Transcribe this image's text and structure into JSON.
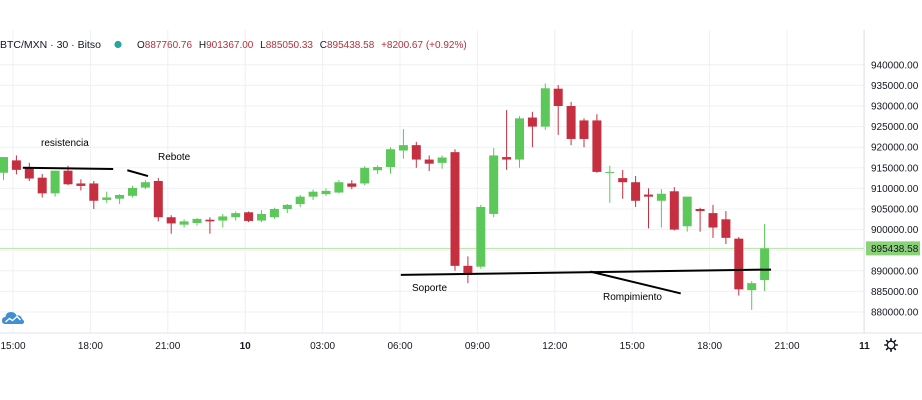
{
  "colors": {
    "up": "#5cc85a",
    "down": "#c52f3f",
    "grid": "#eef0f4",
    "price_tag": "#8bd17a",
    "current_line": "#b6e3a6",
    "annotation": "#000000",
    "background": "#ffffff"
  },
  "header": {
    "symbol": "BTC/MXN · 30 · Bitso",
    "status_dot_color": "#26a69a",
    "o_label": "O",
    "o_value": "887760.76",
    "h_label": "H",
    "h_value": "901367.00",
    "l_label": "L",
    "l_value": "885050.33",
    "c_label": "C",
    "c_value": "895438.58",
    "change": "+8200.67 (+0.92%)"
  },
  "price_tag": "895438.58",
  "logo_icon": "tradingview-cloud-icon",
  "settings_icon": "gear-icon",
  "chart_data": {
    "type": "candlestick",
    "title": "BTC/MXN · 30 · Bitso",
    "y_ticks": [
      880000,
      885000,
      890000,
      895000,
      900000,
      905000,
      910000,
      915000,
      920000,
      925000,
      930000,
      935000,
      940000
    ],
    "y_tick_labels": [
      "880000.00",
      "885000.00",
      "890000.00",
      "895000.00",
      "900000.00",
      "905000.00",
      "910000.00",
      "915000.00",
      "920000.00",
      "925000.00",
      "930000.00",
      "935000.00",
      "940000.00"
    ],
    "ylim": [
      877000,
      943000
    ],
    "x_ticks": [
      0,
      6,
      12,
      18,
      24,
      30,
      36,
      42,
      48,
      54,
      60,
      66,
      72
    ],
    "x_tick_labels": [
      "15:00",
      "18:00",
      "21:00",
      "10",
      "03:00",
      "06:00",
      "09:00",
      "12:00",
      "15:00",
      "18:00",
      "21:00",
      "11",
      ""
    ],
    "current_price": 895438.58,
    "candles": [
      {
        "o": 913800,
        "h": 917600,
        "l": 912000,
        "c": 917600
      },
      {
        "o": 916800,
        "h": 918000,
        "l": 913400,
        "c": 914500
      },
      {
        "o": 915000,
        "h": 916200,
        "l": 911800,
        "c": 912400
      },
      {
        "o": 912600,
        "h": 913500,
        "l": 907800,
        "c": 908800
      },
      {
        "o": 908800,
        "h": 914300,
        "l": 908000,
        "c": 914300
      },
      {
        "o": 914300,
        "h": 915500,
        "l": 910800,
        "c": 911000
      },
      {
        "o": 911200,
        "h": 912200,
        "l": 909500,
        "c": 910600
      },
      {
        "o": 911200,
        "h": 911800,
        "l": 905000,
        "c": 907000
      },
      {
        "o": 907200,
        "h": 909200,
        "l": 906500,
        "c": 907800
      },
      {
        "o": 907500,
        "h": 908600,
        "l": 906200,
        "c": 908400
      },
      {
        "o": 908200,
        "h": 910600,
        "l": 907800,
        "c": 910100
      },
      {
        "o": 910200,
        "h": 912000,
        "l": 909800,
        "c": 911500
      },
      {
        "o": 911800,
        "h": 912500,
        "l": 902000,
        "c": 903000
      },
      {
        "o": 903000,
        "h": 903500,
        "l": 899000,
        "c": 901500
      },
      {
        "o": 901200,
        "h": 902500,
        "l": 900500,
        "c": 902000
      },
      {
        "o": 901600,
        "h": 902800,
        "l": 901000,
        "c": 902600
      },
      {
        "o": 902400,
        "h": 903000,
        "l": 899000,
        "c": 902000
      },
      {
        "o": 902200,
        "h": 903800,
        "l": 900500,
        "c": 903200
      },
      {
        "o": 903000,
        "h": 904400,
        "l": 902200,
        "c": 904000
      },
      {
        "o": 904200,
        "h": 904400,
        "l": 901800,
        "c": 902100
      },
      {
        "o": 902200,
        "h": 904700,
        "l": 901800,
        "c": 903800
      },
      {
        "o": 903000,
        "h": 905300,
        "l": 902600,
        "c": 905000
      },
      {
        "o": 905000,
        "h": 906200,
        "l": 904000,
        "c": 906000
      },
      {
        "o": 906200,
        "h": 908400,
        "l": 905500,
        "c": 908000
      },
      {
        "o": 908000,
        "h": 909700,
        "l": 907200,
        "c": 909200
      },
      {
        "o": 908600,
        "h": 910000,
        "l": 908200,
        "c": 909400
      },
      {
        "o": 909000,
        "h": 912000,
        "l": 908800,
        "c": 911500
      },
      {
        "o": 911200,
        "h": 912000,
        "l": 909800,
        "c": 910400
      },
      {
        "o": 911200,
        "h": 915400,
        "l": 910800,
        "c": 915000
      },
      {
        "o": 914400,
        "h": 915600,
        "l": 913500,
        "c": 915200
      },
      {
        "o": 915200,
        "h": 920000,
        "l": 913600,
        "c": 919500
      },
      {
        "o": 919200,
        "h": 924400,
        "l": 917200,
        "c": 920500
      },
      {
        "o": 920500,
        "h": 921300,
        "l": 915000,
        "c": 917000
      },
      {
        "o": 917000,
        "h": 918000,
        "l": 914200,
        "c": 916000
      },
      {
        "o": 916200,
        "h": 918000,
        "l": 914800,
        "c": 917500
      },
      {
        "o": 918800,
        "h": 919500,
        "l": 890000,
        "c": 891200
      },
      {
        "o": 891200,
        "h": 893500,
        "l": 887000,
        "c": 889000
      },
      {
        "o": 891000,
        "h": 906000,
        "l": 890500,
        "c": 905500
      },
      {
        "o": 903800,
        "h": 919800,
        "l": 903000,
        "c": 918000
      },
      {
        "o": 917600,
        "h": 929000,
        "l": 914500,
        "c": 917000
      },
      {
        "o": 917000,
        "h": 927500,
        "l": 915000,
        "c": 927000
      },
      {
        "o": 927200,
        "h": 928600,
        "l": 920000,
        "c": 925000
      },
      {
        "o": 925000,
        "h": 935500,
        "l": 924200,
        "c": 934300
      },
      {
        "o": 934200,
        "h": 935100,
        "l": 923000,
        "c": 930000
      },
      {
        "o": 930000,
        "h": 931000,
        "l": 920500,
        "c": 922000
      },
      {
        "o": 926500,
        "h": 927000,
        "l": 920000,
        "c": 922000
      },
      {
        "o": 926500,
        "h": 928000,
        "l": 913800,
        "c": 914000
      },
      {
        "o": 914000,
        "h": 915500,
        "l": 906500,
        "c": 914000
      },
      {
        "o": 912500,
        "h": 914500,
        "l": 907500,
        "c": 911500
      },
      {
        "o": 911500,
        "h": 913000,
        "l": 905500,
        "c": 907000
      },
      {
        "o": 908500,
        "h": 910000,
        "l": 900300,
        "c": 908000
      },
      {
        "o": 907000,
        "h": 909800,
        "l": 900500,
        "c": 908700
      },
      {
        "o": 909300,
        "h": 910300,
        "l": 899800,
        "c": 900000
      },
      {
        "o": 900800,
        "h": 907500,
        "l": 899500,
        "c": 908000
      },
      {
        "o": 905000,
        "h": 905300,
        "l": 899500,
        "c": 904500
      },
      {
        "o": 904000,
        "h": 906000,
        "l": 898000,
        "c": 900500
      },
      {
        "o": 902500,
        "h": 904500,
        "l": 896500,
        "c": 898000
      },
      {
        "o": 897800,
        "h": 898200,
        "l": 884000,
        "c": 885500
      },
      {
        "o": 885300,
        "h": 887500,
        "l": 880500,
        "c": 887000
      },
      {
        "o": 887760.76,
        "h": 901367,
        "l": 885050.33,
        "c": 895438.58
      }
    ]
  },
  "annotations": [
    {
      "label": "resistencia",
      "kind": "line",
      "p1": [
        1.5,
        915000
      ],
      "p2": [
        8.5,
        914700
      ]
    },
    {
      "label": "Rebote",
      "kind": "line",
      "p1": [
        9.6,
        914400
      ],
      "p2": [
        11.2,
        913000
      ]
    },
    {
      "label": "Soporte",
      "kind": "line",
      "p1": [
        30.8,
        889000
      ],
      "p2": [
        59.5,
        890300
      ]
    },
    {
      "label": "Rompimiento",
      "kind": "line",
      "p1": [
        45.5,
        889800
      ],
      "p2": [
        52.5,
        884500
      ]
    }
  ],
  "annotation_labels": {
    "resistencia": "resistencia",
    "rebote": "Rebote",
    "soporte": "Soporte",
    "rompimiento": "Rompimiento"
  }
}
